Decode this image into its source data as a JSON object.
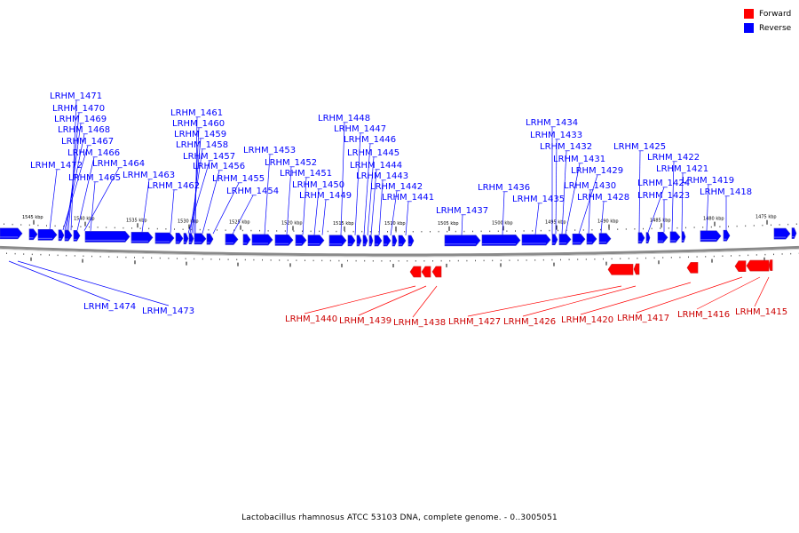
{
  "colors": {
    "forward": "#ff0000",
    "reverse": "#0000ff",
    "backbone": "#8a8a8a"
  },
  "legend": [
    {
      "label": "Forward",
      "color": "#ff0000"
    },
    {
      "label": "Reverse",
      "color": "#0000ff"
    }
  ],
  "caption": "Lactobacillus rhamnosus ATCC 53103 DNA, complete genome. - 0..3005051",
  "scale_labels": [
    "1545 kbp",
    "1540 kbp",
    "1535 kbp",
    "1530 kbp",
    "1525 kbp",
    "1520 kbp",
    "1515 kbp",
    "1510 kbp",
    "1505 kbp",
    "1500 kbp",
    "1495 kbp",
    "1490 kbp",
    "1485 kbp",
    "1480 kbp",
    "1475 kbp"
  ],
  "reverse_genes": [
    "LRHM_1471",
    "LRHM_1470",
    "LRHM_1469",
    "LRHM_1468",
    "LRHM_1467",
    "LRHM_1466",
    "LRHM_1472",
    "LRHM_1464",
    "LRHM_1465",
    "LRHM_1463",
    "LRHM_1462",
    "LRHM_1461",
    "LRHM_1460",
    "LRHM_1459",
    "LRHM_1458",
    "LRHM_1457",
    "LRHM_1456",
    "LRHM_1455",
    "LRHM_1454",
    "LRHM_1453",
    "LRHM_1452",
    "LRHM_1451",
    "LRHM_1450",
    "LRHM_1449",
    "LRHM_1448",
    "LRHM_1447",
    "LRHM_1446",
    "LRHM_1445",
    "LRHM_1444",
    "LRHM_1443",
    "LRHM_1442",
    "LRHM_1441",
    "LRHM_1437",
    "LRHM_1436",
    "LRHM_1435",
    "LRHM_1434",
    "LRHM_1433",
    "LRHM_1432",
    "LRHM_1431",
    "LRHM_1429",
    "LRHM_1430",
    "LRHM_1428",
    "LRHM_1425",
    "LRHM_1424",
    "LRHM_1423",
    "LRHM_1422",
    "LRHM_1421",
    "LRHM_1419",
    "LRHM_1418",
    "LRHM_1474",
    "LRHM_1473"
  ],
  "forward_genes": [
    "LRHM_1440",
    "LRHM_1439",
    "LRHM_1438",
    "LRHM_1427",
    "LRHM_1426",
    "LRHM_1420",
    "LRHM_1417",
    "LRHM_1416",
    "LRHM_1415"
  ]
}
